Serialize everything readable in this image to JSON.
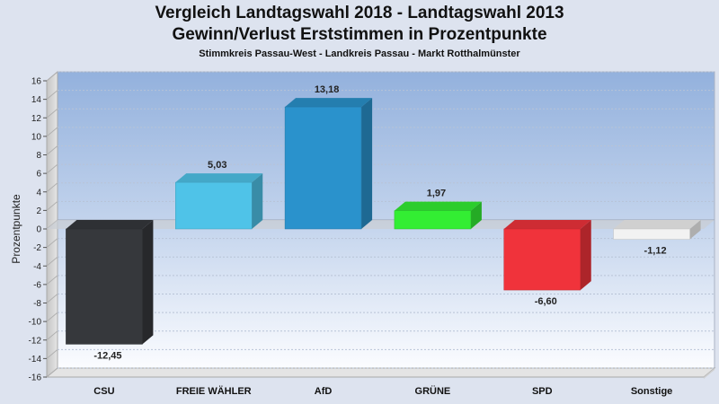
{
  "header": {
    "title_line1": "Vergleich Landtagswahl 2018 - Landtagswahl 2013",
    "title_line2": "Gewinn/Verlust Erststimmen in Prozentpunkte",
    "subtitle": "Stimmkreis Passau-West - Landkreis Passau - Markt Rotthalmünster"
  },
  "chart_data": {
    "type": "bar",
    "title": "Vergleich Landtagswahl 2018 - Landtagswahl 2013 / Gewinn/Verlust Erststimmen in Prozentpunkte",
    "subtitle": "Stimmkreis Passau-West - Landkreis Passau - Markt Rotthalmünster",
    "xlabel": "",
    "ylabel": "Prozentpunkte",
    "ylim": [
      -16,
      16
    ],
    "ytick_step": 2,
    "grid": true,
    "categories": [
      "CSU",
      "FREIE WÄHLER",
      "AfD",
      "GRÜNE",
      "SPD",
      "Sonstige"
    ],
    "values": [
      -12.45,
      5.03,
      13.18,
      1.97,
      -6.6,
      -1.12
    ],
    "data_labels": [
      "-12,45",
      "5,03",
      "13,18",
      "1,97",
      "-6,60",
      "-1,12"
    ],
    "colors": [
      "#36383c",
      "#4fc3e8",
      "#2a92cc",
      "#33ee33",
      "#f0333b",
      "#f2f2f2"
    ]
  }
}
